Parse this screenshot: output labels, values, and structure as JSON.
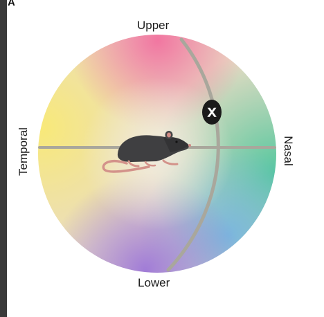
{
  "panel_label": "A",
  "directions": {
    "upper": "Upper",
    "lower": "Lower",
    "temporal": "Temporal",
    "nasal": "Nasal"
  },
  "marker": {
    "symbol": "X"
  },
  "colors": {
    "upper": "#f07aa0",
    "temporal": "#f7e27a",
    "nasal": "#5fc9a7",
    "lower": "#9b7bd6",
    "lower_nasal": "#7ab8e0",
    "meridian": "#a8a8a0",
    "mouse": "#3d3d3f",
    "mouse_pink": "#d6948a",
    "marker_fill": "#1a1a1a"
  }
}
